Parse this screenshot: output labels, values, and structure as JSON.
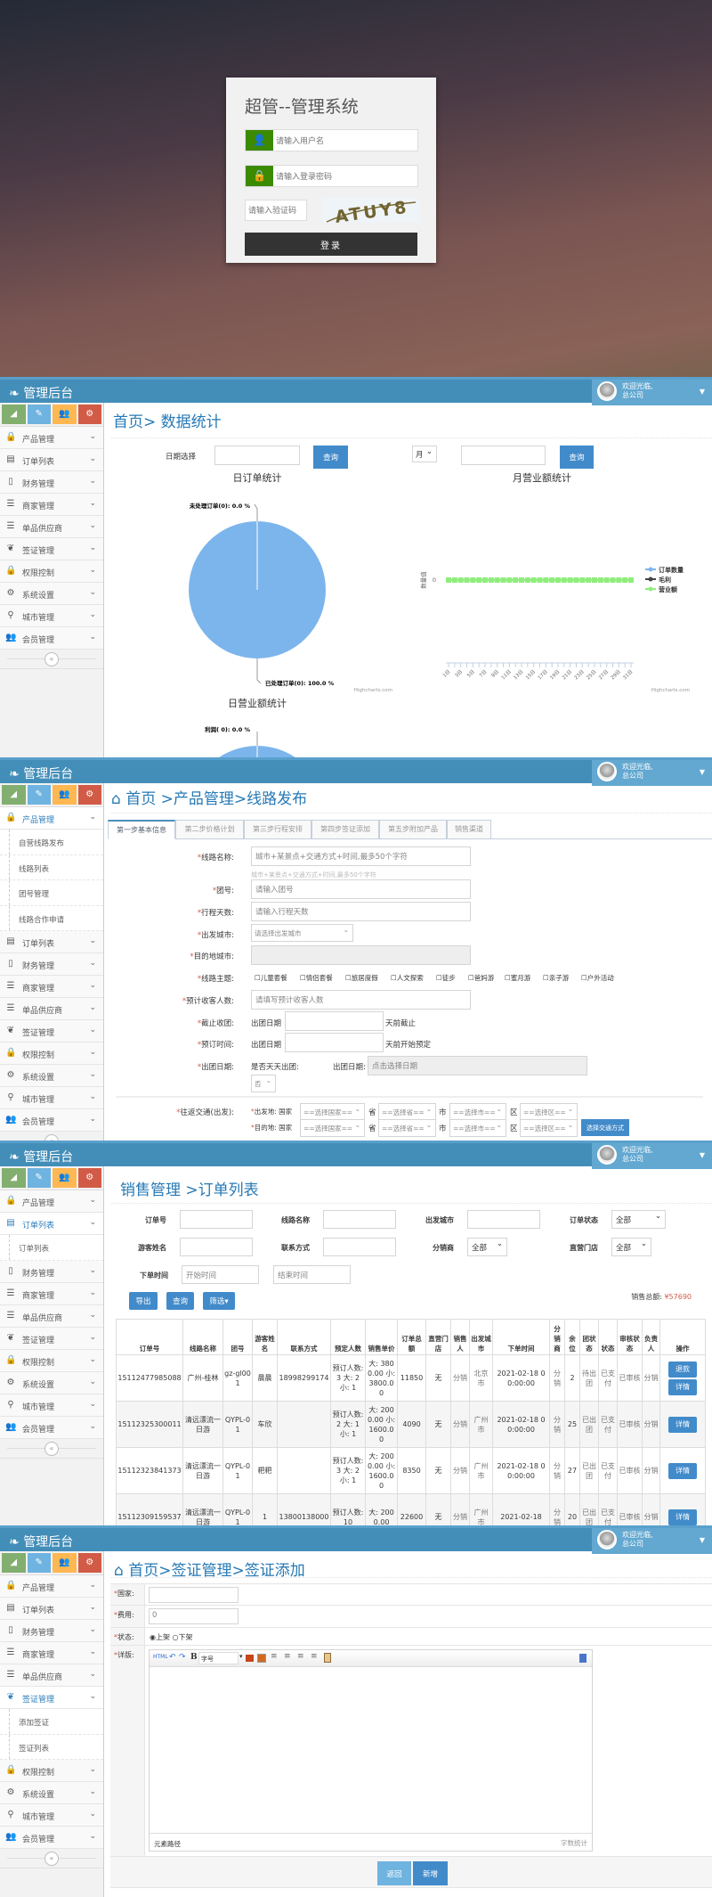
{
  "login": {
    "title": "超管--管理系统",
    "username_placeholder": "请输入用户名",
    "password_placeholder": "请输入登录密码",
    "captcha_placeholder": "请输入验证码",
    "captcha_text": "ATUY8",
    "login_button": "登录"
  },
  "app": {
    "brand": "管理后台",
    "user_greeting": "欢迎光临,",
    "user_company": "总公司",
    "colors": {
      "header": "#438eb9",
      "accent": "#428bca",
      "shortcut_green": "#82af6f",
      "shortcut_blue": "#6fb3e0",
      "shortcut_orange": "#ffb752",
      "shortcut_red": "#d15b47"
    }
  },
  "sidebar": {
    "shortcuts": [
      {
        "icon": "signal-icon",
        "color": "#82af6f"
      },
      {
        "icon": "pencil-icon",
        "color": "#6fb3e0"
      },
      {
        "icon": "users-icon",
        "color": "#ffb752"
      },
      {
        "icon": "cogs-icon",
        "color": "#d15b47"
      }
    ],
    "items": [
      {
        "label": "产品管理",
        "icon": "lock-icon"
      },
      {
        "label": "订单列表",
        "icon": "file-icon"
      },
      {
        "label": "财务管理",
        "icon": "mobile-icon"
      },
      {
        "label": "商家管理",
        "icon": "list-icon"
      },
      {
        "label": "单品供应商",
        "icon": "list-icon"
      },
      {
        "label": "签证管理",
        "icon": "leaf-icon"
      },
      {
        "label": "权限控制",
        "icon": "lock-icon"
      },
      {
        "label": "系统设置",
        "icon": "gear-icon"
      },
      {
        "label": "城市管理",
        "icon": "map-marker-icon"
      },
      {
        "label": "会员管理",
        "icon": "users-icon"
      }
    ],
    "collapse_label": "«"
  },
  "dashboard": {
    "breadcrumb": "首页> 数据统计",
    "date_label": "日期选择",
    "query_button": "查询",
    "period_select": "月",
    "query_button_2": "查询",
    "credits": "Highcharts.com"
  },
  "chart_data": [
    {
      "type": "pie",
      "title": "日订单统计",
      "slices": [
        {
          "name": "未处理订单",
          "count": 0,
          "percent": 0.0,
          "label": "未处理订单(0): 0.0 %"
        },
        {
          "name": "已处理订单",
          "count": 0,
          "percent": 100.0,
          "label": "已处理订单(0): 100.0 %"
        }
      ],
      "color": "#7cb5ec"
    },
    {
      "type": "line",
      "title": "月营业额统计",
      "ylabel": "数量值",
      "yticks": [
        "0"
      ],
      "x": [
        "1日",
        "2日",
        "3日",
        "4日",
        "5日",
        "6日",
        "7日",
        "8日",
        "9日",
        "10日",
        "11日",
        "12日",
        "13日",
        "14日",
        "15日",
        "16日",
        "17日",
        "18日",
        "19日",
        "20日",
        "21日",
        "22日",
        "23日",
        "24日",
        "25日",
        "26日",
        "27日",
        "28日",
        "29日",
        "30日",
        "31日"
      ],
      "xtick_labels": [
        "1日",
        "3日",
        "5日",
        "7日",
        "9日",
        "11日",
        "13日",
        "15日",
        "17日",
        "19日",
        "21日",
        "23日",
        "25日",
        "27日",
        "29日",
        "31日"
      ],
      "series": [
        {
          "name": "订单数量",
          "color": "#7cb5ec",
          "values": [
            0,
            0,
            0,
            0,
            0,
            0,
            0,
            0,
            0,
            0,
            0,
            0,
            0,
            0,
            0,
            0,
            0,
            0,
            0,
            0,
            0,
            0,
            0,
            0,
            0,
            0,
            0,
            0,
            0,
            0,
            0
          ]
        },
        {
          "name": "毛利",
          "color": "#434348",
          "values": [
            0,
            0,
            0,
            0,
            0,
            0,
            0,
            0,
            0,
            0,
            0,
            0,
            0,
            0,
            0,
            0,
            0,
            0,
            0,
            0,
            0,
            0,
            0,
            0,
            0,
            0,
            0,
            0,
            0,
            0,
            0
          ]
        },
        {
          "name": "营业额",
          "color": "#90ed7d",
          "values": [
            0,
            0,
            0,
            0,
            0,
            0,
            0,
            0,
            0,
            0,
            0,
            0,
            0,
            0,
            0,
            0,
            0,
            0,
            0,
            0,
            0,
            0,
            0,
            0,
            0,
            0,
            0,
            0,
            0,
            0,
            0
          ]
        }
      ],
      "legend": "right"
    },
    {
      "type": "pie",
      "title": "日营业额统计",
      "slices": [
        {
          "name": "利润",
          "count": 0,
          "percent": 0.0,
          "label": "利润( 0): 0.0 %"
        }
      ],
      "color": "#7cb5ec"
    }
  ],
  "route": {
    "breadcrumb": "首页 >产品管理>线路发布",
    "submenu": [
      "自营线路发布",
      "线路列表",
      "团号管理",
      "线路合作申请"
    ],
    "tabs": [
      "第一步基本信息",
      "第二步价格计划",
      "第三步行程安排",
      "第四步签证添加",
      "第五步附加产品",
      "销售渠道"
    ],
    "fields": {
      "name_label": "线路名称:",
      "name_placeholder": "城市+某景点+交通方式+时间,最多50个字符",
      "name_hint": "城市+某景点+交通方式+时间,最多50个字符",
      "group_label": "团号:",
      "group_placeholder": "请输入团号",
      "days_label": "行程天数:",
      "days_placeholder": "请输入行程天数",
      "depart_label": "出发城市:",
      "depart_select": "请选择出发城市",
      "dest_label": "目的地城市:",
      "theme_label": "线路主题:",
      "themes": [
        "儿童套餐",
        "情侣套餐",
        "旅居度假",
        "人文探索",
        "徒步",
        "爸妈游",
        "蜜月游",
        "亲子游",
        "户外活动"
      ],
      "guests_label": "预计收客人数:",
      "guests_placeholder": "请填写预计收客人数",
      "close_label": "截止收团:",
      "close_prefix": "出团日期",
      "close_suffix": "天前截止",
      "book_label": "预订时间:",
      "book_prefix": "出团日期",
      "book_suffix": "天前开始预定",
      "date_label": "出团日期:",
      "daily_label": "是否天天出团:",
      "daily_value": "否",
      "date_label2": "出团日期:",
      "date_placeholder": "点击选择日期",
      "transport_label": "往返交通(出发):",
      "from_label": "出发地: 国家",
      "to_label": "目的地: 国家",
      "country_select": "==选择国家==",
      "province_word": "省",
      "province_select": "==选择省==",
      "city_word": "市",
      "city_select": "==选择市==",
      "district_word": "区",
      "district_select": "==选择区==",
      "transport_button": "选择交通方式"
    }
  },
  "orders": {
    "breadcrumb": "销售管理 >订单列表",
    "submenu": [
      "订单列表"
    ],
    "filters": {
      "order_no": "订单号",
      "route_name": "线路名称",
      "depart_city": "出发城市",
      "status": "订单状态",
      "status_value": "全部",
      "guest": "游客姓名",
      "contact": "联系方式",
      "distributor": "分销商",
      "distributor_value": "全部",
      "store": "直营门店",
      "store_value": "全部",
      "time": "下单时间",
      "start_placeholder": "开始时间",
      "end_placeholder": "结束时间"
    },
    "buttons": {
      "export": "导出",
      "query": "查询",
      "filter": "筛选▾"
    },
    "total_label": "销售总额:",
    "total_value": "¥57690",
    "columns": [
      "订单号",
      "线路名称",
      "团号",
      "游客姓名",
      "联系方式",
      "预定人数",
      "销售单价",
      "订单总额",
      "直营门店",
      "销售人",
      "出发城市",
      "下单时间",
      "分销商",
      "余位",
      "团状态",
      "状态",
      "审核状态",
      "负责人",
      "操作"
    ],
    "rows": [
      [
        "15112477985088",
        "广州-桂林",
        "gz-gl001",
        "晨晨",
        "18998299174",
        "预订人数: 3 大: 2 小: 1",
        "大: 3800.00 小: 3800.00",
        "11850",
        "无",
        "分销",
        "北京市",
        "2021-02-18 00:00:00",
        "分销",
        "2",
        "待出团",
        "已支付",
        "已审核",
        "分销"
      ],
      [
        "15112325300011",
        "清远漂流一日游",
        "QYPL-01",
        "车欣",
        "",
        "预订人数: 2 大: 1 小: 1",
        "大: 2000.00 小: 1600.00",
        "4090",
        "无",
        "分销",
        "广州市",
        "2021-02-18 00:00:00",
        "分销",
        "25",
        "已出团",
        "已支付",
        "已审核",
        "分销"
      ],
      [
        "15112323841373",
        "清远漂流一日游",
        "QYPL-01",
        "粑粑",
        "",
        "预订人数: 3 大: 2 小: 1",
        "大: 2000.00 小: 1600.00",
        "8350",
        "无",
        "分销",
        "广州市",
        "2021-02-18 00:00:00",
        "分销",
        "27",
        "已出团",
        "已支付",
        "已审核",
        "分销"
      ],
      [
        "15112309159537",
        "清远漂流一日游",
        "QYPL-01",
        "1",
        "13800138000",
        "预订人数: 10",
        "大: 2000.00",
        "22600",
        "无",
        "分销",
        "广州市",
        "2021-02-18",
        "分销",
        "20",
        "已出团",
        "已支付",
        "已审核",
        "分销"
      ]
    ],
    "row_actions": [
      [
        "退款",
        "详情"
      ],
      [
        "详情"
      ],
      [
        "详情"
      ],
      [
        "详情"
      ]
    ]
  },
  "visa": {
    "breadcrumb": "首页>签证管理>签证添加",
    "submenu": [
      "添加签证",
      "签证列表"
    ],
    "country_label": "国家:",
    "country_value": "",
    "fee_label": "费用:",
    "fee_value": "0",
    "status_label": "状态:",
    "status_options": [
      "上架",
      "下架"
    ],
    "status_selected": "上架",
    "detail_label": "详版:",
    "editor_font_select": "字号",
    "editor_path": "元素路径",
    "editor_wordcount": "字数统计",
    "back_button": "返回",
    "add_button": "新增"
  }
}
